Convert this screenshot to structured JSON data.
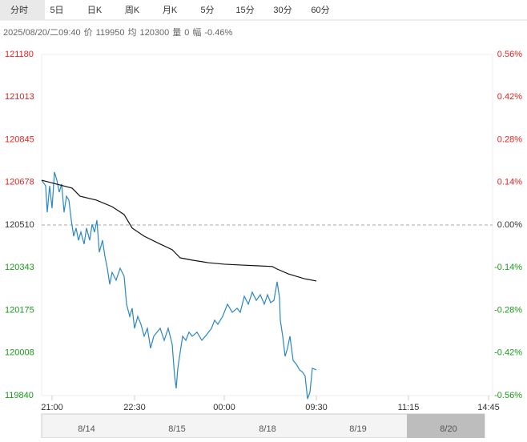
{
  "tabs": [
    "分时",
    "5日",
    "日K",
    "周K",
    "月K",
    "5分",
    "15分",
    "30分",
    "60分"
  ],
  "info": {
    "datetime": "2025/08/20/二09:40",
    "price_label": "价",
    "price": "119950",
    "avg_label": "均",
    "avg": "120300",
    "vol_label": "量",
    "vol": "0",
    "chg_label": "幅",
    "chg": "-0.46%"
  },
  "chart_data": {
    "type": "line",
    "xlim": [
      0,
      563
    ],
    "xticks": [
      {
        "value": 13,
        "label": "21:00"
      },
      {
        "value": 116,
        "label": "22:30"
      },
      {
        "value": 228,
        "label": "00:00"
      },
      {
        "value": 343,
        "label": "09:30"
      },
      {
        "value": 458,
        "label": "11:15"
      },
      {
        "value": 558,
        "label": "14:45"
      }
    ],
    "ylim": [
      119840,
      121180
    ],
    "yticks": [
      121180,
      121013,
      120845,
      120678,
      120510,
      120343,
      120175,
      120008,
      119840
    ],
    "y2lim": [
      -0.56,
      0.56
    ],
    "y2ticks": [
      {
        "value": 0.56,
        "label": "0.56%"
      },
      {
        "value": 0.42,
        "label": "0.42%"
      },
      {
        "value": 0.28,
        "label": "0.28%"
      },
      {
        "value": 0.14,
        "label": "0.14%"
      },
      {
        "value": 0,
        "label": "0.00%"
      },
      {
        "value": -0.14,
        "label": "-0.14%"
      },
      {
        "value": -0.28,
        "label": "-0.28%"
      },
      {
        "value": -0.42,
        "label": "-0.42%"
      },
      {
        "value": -0.56,
        "label": "-0.56%"
      }
    ],
    "base": 120510,
    "up_color": "#e8231e",
    "down_color": "#1a9a1a",
    "flat_color": "#333333",
    "series": [
      {
        "color": "#2a86c4",
        "x": [
          0,
          5,
          7,
          10,
          13,
          16,
          19,
          22,
          25,
          28,
          31,
          34,
          37,
          40,
          43,
          46,
          49,
          53,
          56,
          60,
          63,
          66,
          69,
          72,
          76,
          79,
          82,
          85,
          88,
          93,
          98,
          103,
          106,
          110,
          113,
          116,
          120,
          124,
          128,
          132,
          136,
          140,
          144,
          148,
          153,
          158,
          163,
          166,
          168,
          170,
          173,
          176,
          180,
          184,
          188,
          194,
          200,
          206,
          212,
          216,
          220,
          226,
          232,
          238,
          244,
          248,
          253,
          258,
          263,
          268,
          273,
          278,
          282,
          286,
          290,
          294,
          297,
          298,
          301,
          304,
          307,
          310,
          314,
          318,
          322,
          326,
          329,
          332,
          335,
          338,
          343
        ],
        "values": [
          120686,
          120664,
          120560,
          120664,
          120576,
          120718,
          120686,
          120639,
          120671,
          120560,
          120623,
          120608,
          120529,
          120466,
          120498,
          120450,
          120482,
          120435,
          120498,
          120450,
          120513,
          120482,
          120529,
          120403,
          120450,
          120387,
          120340,
          120277,
          120324,
          120293,
          120340,
          120309,
          120199,
          120151,
          120183,
          120104,
          120151,
          120120,
          120073,
          120104,
          120026,
          120073,
          120089,
          120104,
          120057,
          120104,
          120041,
          119916,
          119868,
          119947,
          120010,
          120073,
          120057,
          120089,
          120073,
          120089,
          120057,
          120079,
          120104,
          120136,
          120120,
          120151,
          120199,
          120167,
          120183,
          120167,
          120230,
          120199,
          120246,
          120214,
          120236,
          120199,
          120236,
          120205,
          120214,
          120287,
          120224,
          120136,
          120073,
          119994,
          120026,
          120073,
          119978,
          119963,
          119941,
          119931,
          119916,
          119827,
          119853,
          119947,
          119941
        ]
      },
      {
        "color": "#111111",
        "x": [
          0,
          38,
          48,
          68,
          88,
          103,
          113,
          128,
          148,
          163,
          173,
          188,
          208,
          228,
          248,
          268,
          288,
          294,
          308,
          328,
          343
        ],
        "values": [
          120686,
          120655,
          120623,
          120608,
          120582,
          120551,
          120498,
          120466,
          120435,
          120413,
          120381,
          120372,
          120362,
          120356,
          120353,
          120350,
          120347,
          120337,
          120318,
          120299,
          120290
        ]
      }
    ]
  },
  "navigator": {
    "dates": [
      "8/14",
      "8/15",
      "8/18",
      "8/19",
      "8/20"
    ]
  }
}
